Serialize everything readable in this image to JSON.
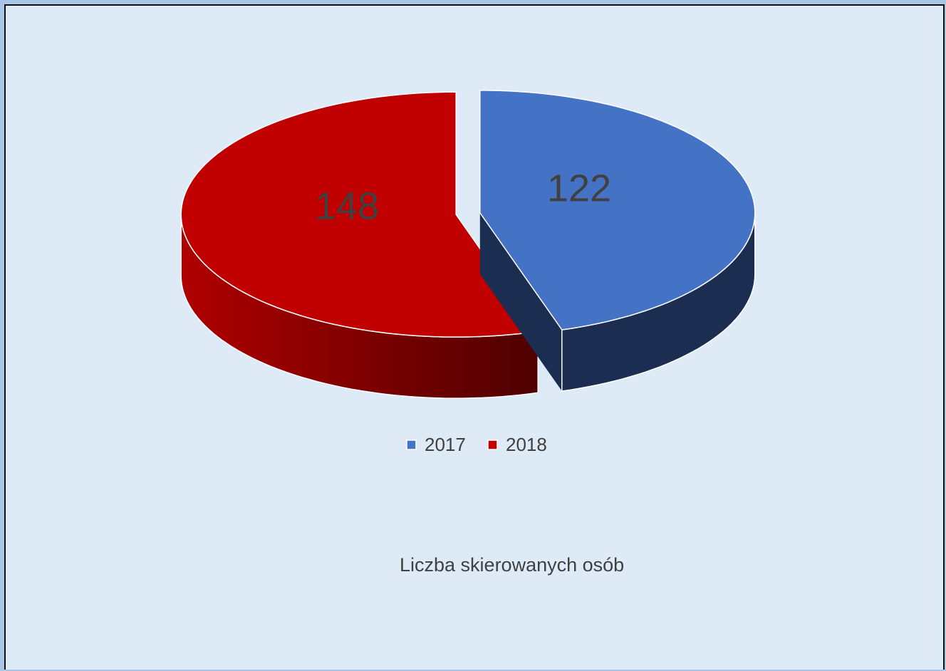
{
  "chart_data": {
    "type": "pie3d",
    "title": "Liczba skierowanych osób",
    "categories": [
      "2017",
      "2018"
    ],
    "values": [
      122,
      148
    ],
    "colors": [
      "#4472c4",
      "#c00000"
    ],
    "side_colors": [
      "#1c2d52",
      "#8a0000"
    ],
    "legend": "bottom"
  }
}
